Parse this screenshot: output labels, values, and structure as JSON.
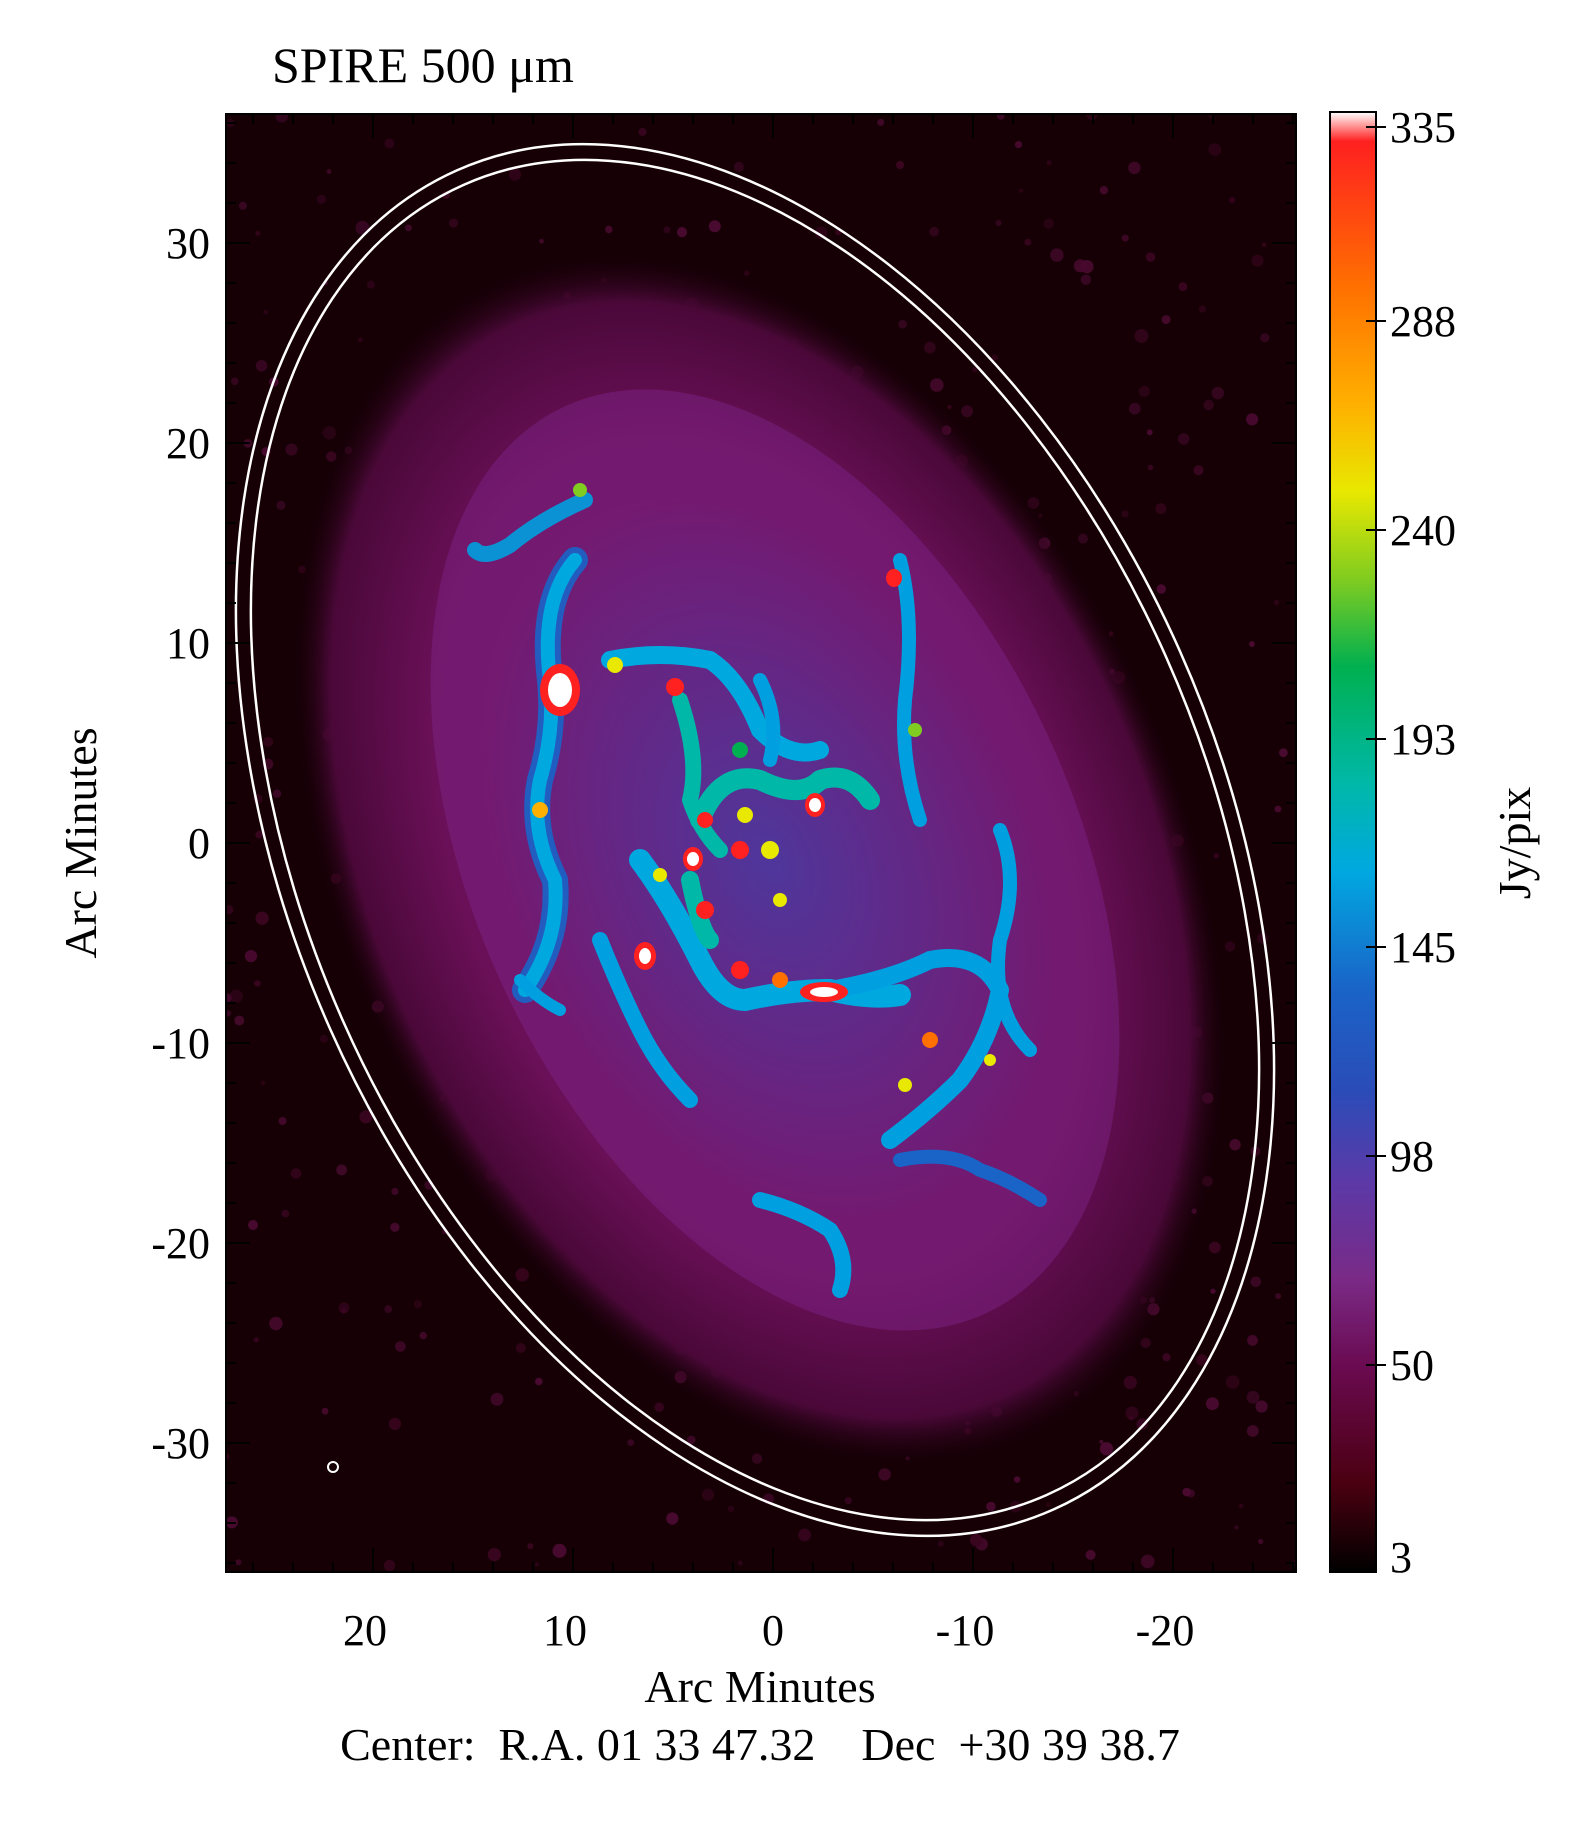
{
  "figure": {
    "title": "SPIRE 500 μm",
    "xlabel": "Arc Minutes",
    "ylabel": "Arc Minutes",
    "center_caption": "Center:  R.A. 01 33 47.32    Dec  +30 39 38.7",
    "x_ticks": [
      "20",
      "10",
      "0",
      "-10",
      "-20"
    ],
    "y_ticks": [
      "30",
      "20",
      "10",
      "0",
      "-10",
      "-20",
      "-30"
    ]
  },
  "colorbar": {
    "label": "Jy/pix",
    "ticks": [
      "335",
      "288",
      "240",
      "193",
      "145",
      "98",
      "50",
      "3"
    ],
    "colors": [
      "#000000",
      "#4a0010",
      "#6a0a50",
      "#7a2a86",
      "#5a3aa8",
      "#2a4cb8",
      "#1a64c8",
      "#00a8e0",
      "#00b8a8",
      "#00b050",
      "#80cc20",
      "#e8e800",
      "#ffb000",
      "#ff7000",
      "#ff2020",
      "#ffffff"
    ]
  },
  "image": {
    "background": "#1a0008",
    "disk": "#6a1058",
    "arm_color": "#00a0e0",
    "knot_color": "#e8e800",
    "peak_color": "#ff2020",
    "ellipse_color": "#ffffff"
  }
}
